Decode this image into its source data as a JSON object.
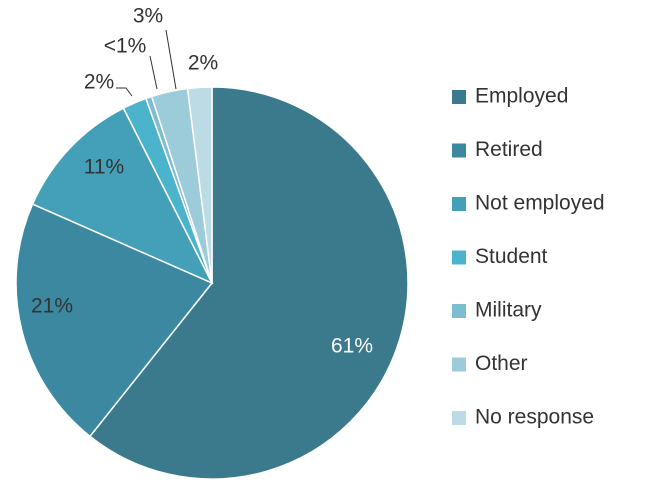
{
  "chart_data": {
    "type": "pie",
    "categories": [
      "Employed",
      "Retired",
      "Not employed",
      "Student",
      "Military",
      "Other",
      "No response"
    ],
    "values": [
      61,
      21,
      11,
      2,
      0.5,
      3,
      2
    ],
    "value_labels": [
      "61%",
      "21%",
      "11%",
      "2%",
      "<1%",
      "3%",
      "2%"
    ],
    "colors": [
      "#3a7a8c",
      "#3b88a0",
      "#44a0b9",
      "#4bb3cc",
      "#7dbdd0",
      "#9ccbda",
      "#bcdbe5"
    ],
    "legend": "right"
  }
}
